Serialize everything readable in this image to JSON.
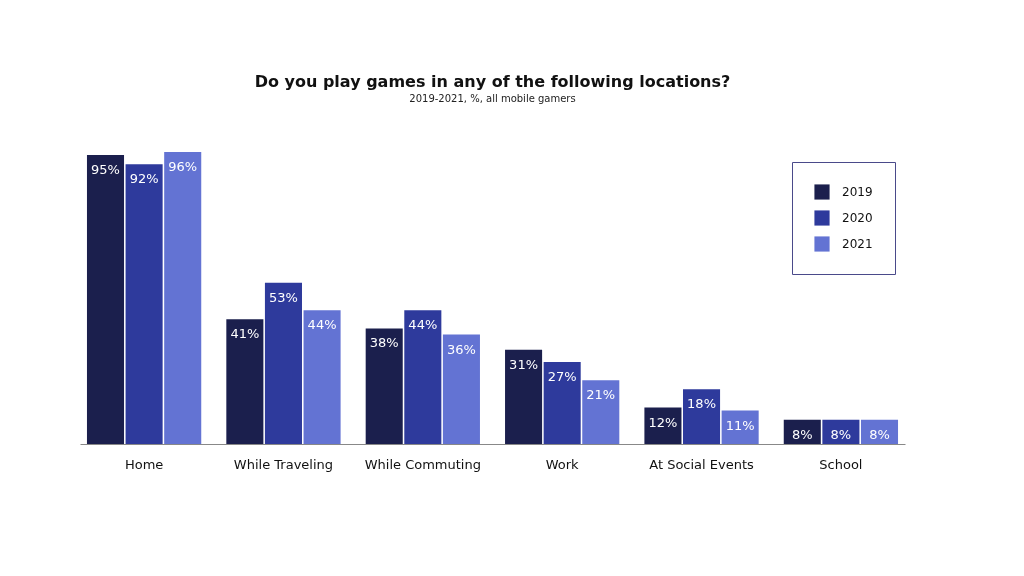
{
  "chart_data": {
    "type": "bar",
    "title": "Do you play games in any of the following locations?",
    "subtitle": "2019-2021, %, all mobile gamers",
    "categories": [
      "Home",
      "While Traveling",
      "While Commuting",
      "Work",
      "At Social Events",
      "School"
    ],
    "series": [
      {
        "name": "2019",
        "color": "#1b1f4d",
        "values": [
          95,
          41,
          38,
          31,
          12,
          8
        ],
        "value_labels": [
          "95%",
          "41%",
          "38%",
          "31%",
          "12%",
          "8%"
        ]
      },
      {
        "name": "2020",
        "color": "#2e3a9c",
        "values": [
          92,
          53,
          44,
          27,
          18,
          8
        ],
        "value_labels": [
          "92%",
          "53%",
          "44%",
          "27%",
          "18%",
          "8%"
        ]
      },
      {
        "name": "2021",
        "color": "#6373d3",
        "values": [
          96,
          44,
          36,
          21,
          11,
          8
        ],
        "value_labels": [
          "96%",
          "44%",
          "36%",
          "21%",
          "11%",
          "8%"
        ]
      }
    ],
    "legend": "top right"
  }
}
